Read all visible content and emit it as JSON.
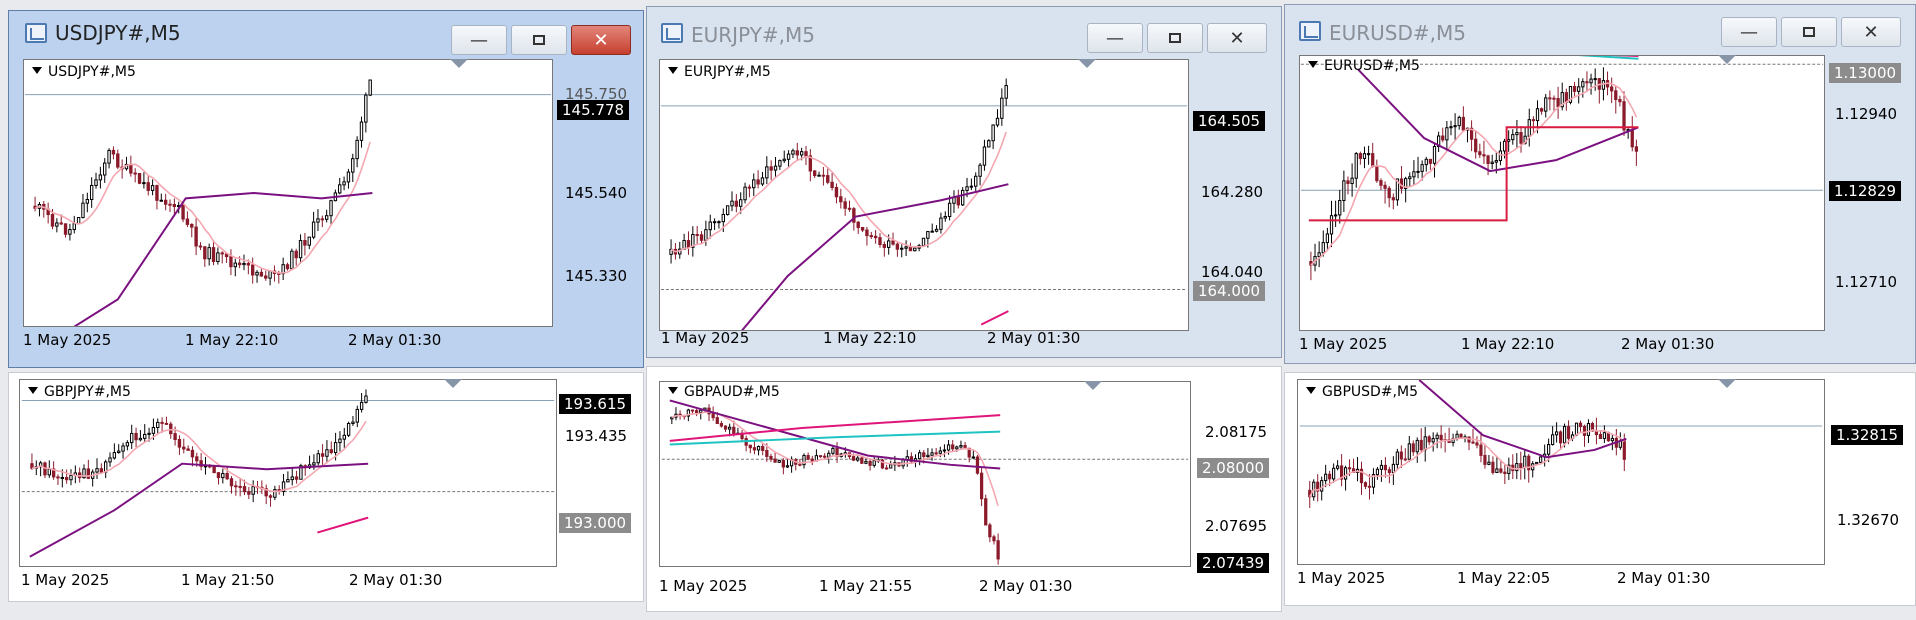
{
  "windows": [
    {
      "id": "usdjpy",
      "title": "USDJPY#,M5",
      "label": "USDJPY#,M5",
      "active": true,
      "minimize_icon": "minimize-icon",
      "restore_icon": "restore-icon",
      "close_icon": "close-icon",
      "y_ticks": [
        "145.540",
        "145.330"
      ],
      "y_partial": "145.750",
      "price_box": "145.778",
      "x_ticks": [
        "1 May 2025",
        "1 May 22:10",
        "2 May 01:30"
      ]
    },
    {
      "id": "eurjpy",
      "title": "EURJPY#,M5",
      "label": "EURJPY#,M5",
      "active": false,
      "y_ticks": [
        "164.280",
        "164.040"
      ],
      "price_box": "164.505",
      "level_box": "164.000",
      "x_ticks": [
        "1 May 2025",
        "1 May 22:10",
        "2 May 01:30"
      ]
    },
    {
      "id": "eurusd",
      "title": "EURUSD#,M5",
      "label": "EURUSD#,M5",
      "active": false,
      "y_ticks": [
        "1.12940",
        "1.12710"
      ],
      "price_box": "1.12829",
      "level_box": "1.13000",
      "x_ticks": [
        "1 May 2025",
        "1 May 22:10",
        "2 May 01:30"
      ]
    },
    {
      "id": "gbpjpy",
      "label": "GBPJPY#,M5",
      "y_ticks": [
        "193.435"
      ],
      "price_box": "193.615",
      "level_box": "193.000",
      "x_ticks": [
        "1 May 2025",
        "1 May 21:50",
        "2 May 01:30"
      ]
    },
    {
      "id": "gbpaud",
      "label": "GBPAUD#,M5",
      "y_ticks": [
        "2.08175",
        "2.07695"
      ],
      "price_box": "2.07439",
      "level_box": "2.08000",
      "x_ticks": [
        "1 May 2025",
        "1 May 21:55",
        "2 May 01:30"
      ]
    },
    {
      "id": "gbpusd",
      "label": "GBPUSD#,M5",
      "y_ticks": [
        "1.32670"
      ],
      "price_box": "1.32815",
      "x_ticks": [
        "1 May 2025",
        "1 May 22:05",
        "2 May 01:30"
      ]
    }
  ],
  "colors": {
    "bull": "#000000",
    "bear": "#8b1a2b",
    "ma_fast": "#f4a7b0",
    "ma_slow": "#7b1080",
    "ma_long": "#e0157a",
    "ma_cyan": "#1ec3c3",
    "box_line": "#d81b3f"
  }
}
